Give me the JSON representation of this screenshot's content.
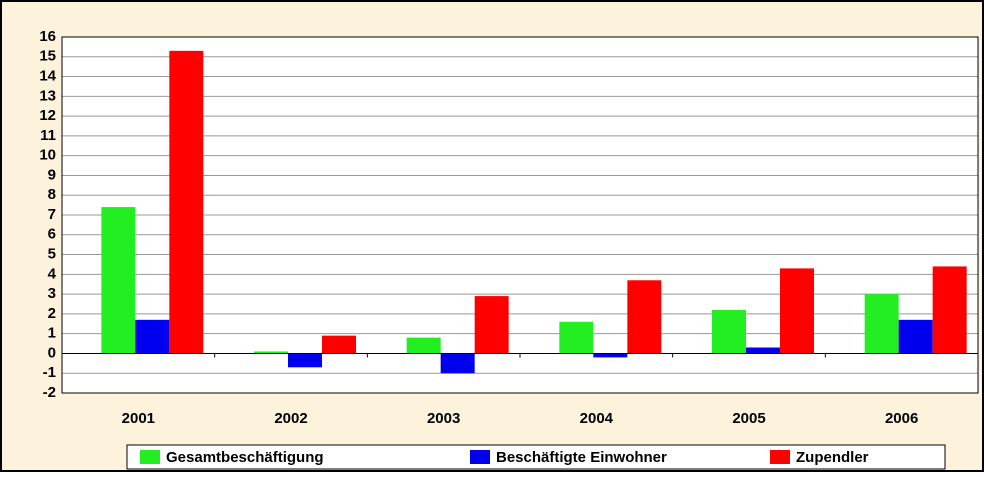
{
  "chart_data": {
    "type": "bar",
    "categories": [
      "2001",
      "2002",
      "2003",
      "2004",
      "2005",
      "2006"
    ],
    "series": [
      {
        "name": "Gesamtbeschäftigung",
        "color": "#22ee22",
        "values": [
          7.4,
          0.1,
          0.8,
          1.6,
          2.2,
          3.0
        ]
      },
      {
        "name": "Beschäftigte Einwohner",
        "color": "#0000ee",
        "values": [
          1.7,
          -0.7,
          -1.0,
          -0.2,
          0.3,
          1.7
        ]
      },
      {
        "name": "Zupendler",
        "color": "#ff0000",
        "values": [
          15.3,
          0.9,
          2.9,
          3.7,
          4.3,
          4.4
        ]
      }
    ],
    "ylim": [
      -2,
      16
    ],
    "yticks": [
      -2,
      -1,
      0,
      1,
      2,
      3,
      4,
      5,
      6,
      7,
      8,
      9,
      10,
      11,
      12,
      13,
      14,
      15,
      16
    ],
    "grid": true,
    "legend": "bottom"
  }
}
